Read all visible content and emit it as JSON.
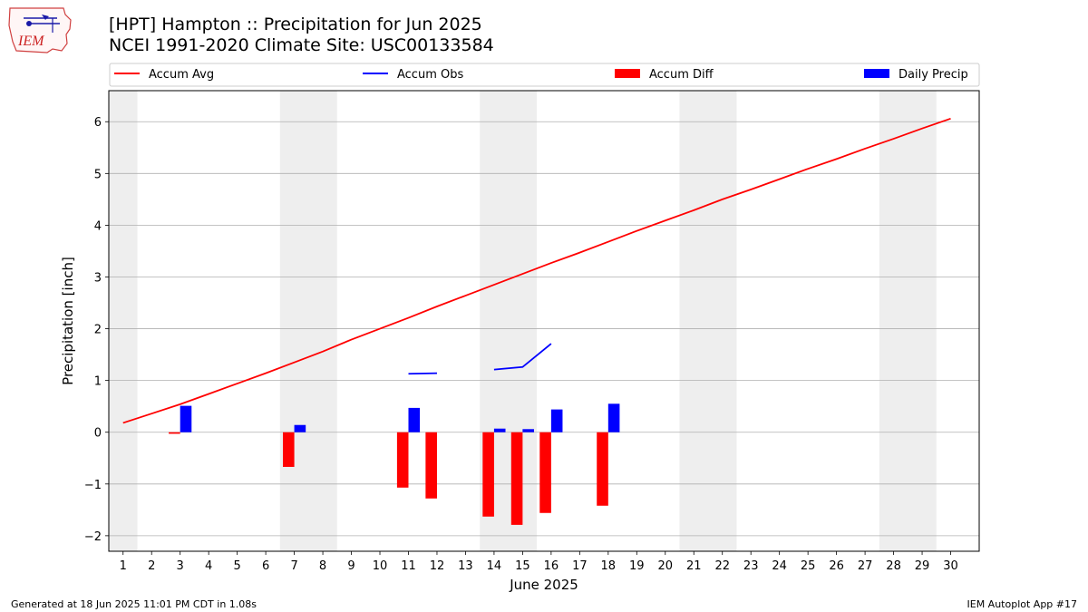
{
  "logo_text": "IEM",
  "title_line1": "[HPT] Hampton :: Precipitation for Jun 2025",
  "title_line2": "NCEI 1991-2020 Climate Site: USC00133584",
  "footer_left": "Generated at 18 Jun 2025 11:01 PM CDT in 1.08s",
  "footer_right": "IEM Autoplot App #17",
  "colors": {
    "accum_avg": "#ff0000",
    "accum_obs": "#0000ff",
    "accum_diff": "#ff0000",
    "daily_precip": "#0000ff",
    "weekend_shade": "#eeeeee",
    "grid": "#b0b0b0"
  },
  "chart_data": {
    "type": "bar",
    "xlabel": "June 2025",
    "ylabel": "Precipitation [inch]",
    "xlim": [
      0.5,
      31
    ],
    "ylim": [
      -2.3,
      6.6
    ],
    "x_ticks": [
      1,
      2,
      3,
      4,
      5,
      6,
      7,
      8,
      9,
      10,
      11,
      12,
      13,
      14,
      15,
      16,
      17,
      18,
      19,
      20,
      21,
      22,
      23,
      24,
      25,
      26,
      27,
      28,
      29,
      30
    ],
    "y_ticks": [
      -2,
      -1,
      0,
      1,
      2,
      3,
      4,
      5,
      6
    ],
    "y_tick_labels": [
      "−2",
      "−1",
      "0",
      "1",
      "2",
      "3",
      "4",
      "5",
      "6"
    ],
    "grid": "horizontal",
    "legend_position": "top",
    "weekend_spans": [
      [
        0.5,
        1.5
      ],
      [
        6.5,
        8.5
      ],
      [
        13.5,
        15.5
      ],
      [
        20.5,
        22.5
      ],
      [
        27.5,
        29.5
      ]
    ],
    "legend": [
      {
        "label": "Accum Avg",
        "kind": "line",
        "color": "#ff0000"
      },
      {
        "label": "Accum Obs",
        "kind": "line",
        "color": "#0000ff"
      },
      {
        "label": "Accum Diff",
        "kind": "bar",
        "color": "#ff0000"
      },
      {
        "label": "Daily Precip",
        "kind": "bar",
        "color": "#0000ff"
      }
    ],
    "series": [
      {
        "name": "Accum Avg",
        "kind": "line",
        "x": [
          1,
          2,
          3,
          4,
          5,
          6,
          7,
          8,
          9,
          10,
          11,
          12,
          13,
          14,
          15,
          16,
          17,
          18,
          19,
          20,
          21,
          22,
          23,
          24,
          25,
          26,
          27,
          28,
          29,
          30
        ],
        "values": [
          0.18,
          0.36,
          0.54,
          0.74,
          0.94,
          1.14,
          1.35,
          1.56,
          1.79,
          2.0,
          2.21,
          2.43,
          2.64,
          2.85,
          3.06,
          3.27,
          3.47,
          3.68,
          3.89,
          4.09,
          4.29,
          4.5,
          4.69,
          4.89,
          5.09,
          5.28,
          5.48,
          5.67,
          5.87,
          6.06
        ]
      },
      {
        "name": "Accum Obs",
        "kind": "line",
        "segments": [
          {
            "x": [
              11,
              12
            ],
            "values": [
              1.13,
              1.14
            ]
          },
          {
            "x": [
              14,
              15,
              16
            ],
            "values": [
              1.21,
              1.26,
              1.71
            ]
          }
        ]
      },
      {
        "name": "Accum Diff",
        "kind": "bar",
        "x": [
          3,
          7,
          11,
          12,
          14,
          15,
          16,
          18
        ],
        "values": [
          -0.03,
          -0.67,
          -1.07,
          -1.28,
          -1.63,
          -1.79,
          -1.56,
          -1.42
        ]
      },
      {
        "name": "Daily Precip",
        "kind": "bar",
        "x": [
          3,
          7,
          11,
          14,
          15,
          16,
          18
        ],
        "values": [
          0.51,
          0.14,
          0.47,
          0.07,
          0.06,
          0.44,
          0.55
        ]
      }
    ]
  }
}
